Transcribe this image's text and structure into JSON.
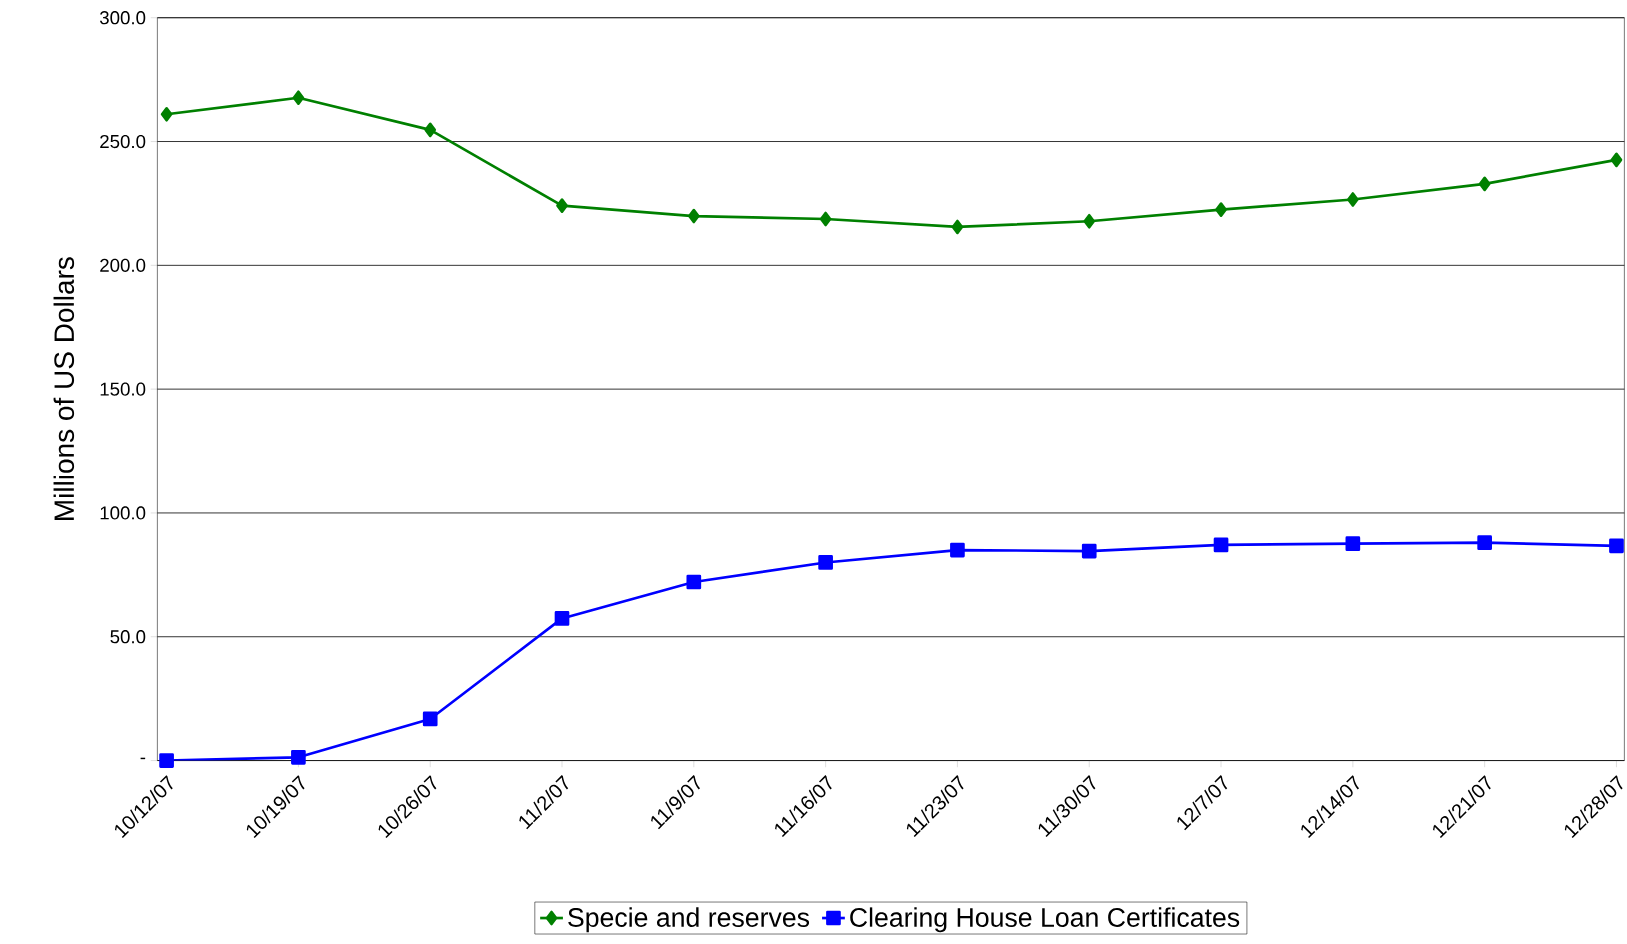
{
  "chart_data": {
    "type": "line",
    "ylabel": "Millions of US Dollars",
    "categories": [
      "10/12/07",
      "10/19/07",
      "10/26/07",
      "11/2/07",
      "11/9/07",
      "11/16/07",
      "11/23/07",
      "11/30/07",
      "12/7/07",
      "12/14/07",
      "12/21/07",
      "12/28/07"
    ],
    "series": [
      {
        "name": "Specie and reserves",
        "color": "#008000",
        "marker": "diamond",
        "values": [
          261.0,
          267.7,
          254.7,
          224.1,
          219.9,
          218.7,
          215.5,
          217.8,
          222.5,
          226.6,
          232.9,
          242.6
        ]
      },
      {
        "name": "Clearing House Loan Certificates",
        "color": "#0000ff",
        "marker": "square",
        "values": [
          0.0,
          1.3,
          16.8,
          57.4,
          72.1,
          80.0,
          85.0,
          84.6,
          87.1,
          87.6,
          88.0,
          86.7
        ]
      }
    ],
    "ylim": [
      0,
      300
    ],
    "yticks": [
      {
        "value": 0,
        "label": "-"
      },
      {
        "value": 50,
        "label": "50.0"
      },
      {
        "value": 100,
        "label": "100.0"
      },
      {
        "value": 150,
        "label": "150.0"
      },
      {
        "value": 200,
        "label": "200.0"
      },
      {
        "value": 250,
        "label": "250.0"
      },
      {
        "value": 300,
        "label": "300.0"
      }
    ],
    "grid": "y",
    "legend": "bottom",
    "line_style": "solid"
  }
}
